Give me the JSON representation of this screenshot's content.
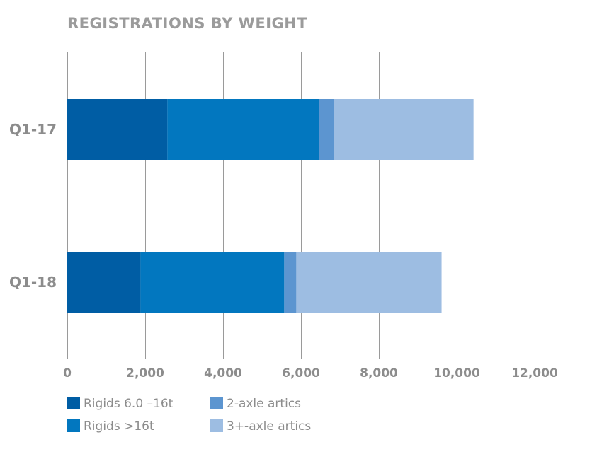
{
  "chart_data": {
    "type": "bar",
    "orientation": "horizontal",
    "stacked": true,
    "title": "REGISTRATIONS BY WEIGHT",
    "categories": [
      "Q1-17",
      "Q1-18"
    ],
    "series": [
      {
        "name": "Rigids 6.0 –16t",
        "color": "#005da4",
        "values": [
          2570,
          1880
        ]
      },
      {
        "name": "Rigids >16t",
        "color": "#0277bf",
        "values": [
          3890,
          3690
        ]
      },
      {
        "name": "2-axle artics",
        "color": "#5c95d0",
        "values": [
          380,
          310
        ]
      },
      {
        "name": "3+-axle artics",
        "color": "#9dbde2",
        "values": [
          3590,
          3730
        ]
      }
    ],
    "xlim": [
      0,
      12000
    ],
    "xticks": [
      0,
      2000,
      4000,
      6000,
      8000,
      10000,
      12000
    ],
    "xtick_labels": [
      "0",
      "2,000",
      "4,000",
      "6,000",
      "8,000",
      "10,000",
      "12,000"
    ],
    "grid": "vertical",
    "legend_placement": "bottom-left"
  }
}
